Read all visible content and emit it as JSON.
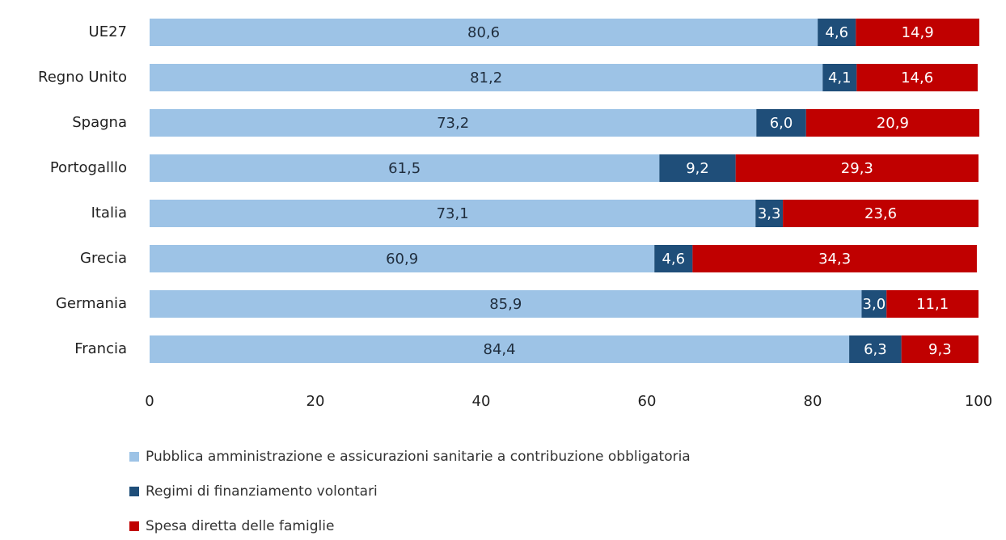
{
  "chart_data": {
    "type": "stacked_bar_horizontal",
    "categories": [
      "UE27",
      "Regno Unito",
      "Spagna",
      "Portogalllo",
      "Italia",
      "Grecia",
      "Germania",
      "Francia"
    ],
    "series": [
      {
        "name": "Pubblica amministrazione e assicurazioni sanitarie a contribuzione obbligatoria",
        "color": "#9dc3e6",
        "values": [
          80.6,
          81.2,
          73.2,
          61.5,
          73.1,
          60.9,
          85.9,
          84.4
        ],
        "value_labels": [
          "80,6",
          "81,2",
          "73,2",
          "61,5",
          "73,1",
          "60,9",
          "85,9",
          "84,4"
        ]
      },
      {
        "name": "Regimi di finanziamento volontari",
        "color": "#1f4e79",
        "values": [
          4.6,
          4.1,
          6.0,
          9.2,
          3.3,
          4.6,
          3.0,
          6.3
        ],
        "value_labels": [
          "4,6",
          "4,1",
          "6,0",
          "9,2",
          "3,3",
          "4,6",
          "3,0",
          "6,3"
        ]
      },
      {
        "name": "Spesa diretta delle famiglie",
        "color": "#c00000",
        "values": [
          14.9,
          14.6,
          20.9,
          29.3,
          23.6,
          34.3,
          11.1,
          9.3
        ],
        "value_labels": [
          "14,9",
          "14,6",
          "20,9",
          "29,3",
          "23,6",
          "34,3",
          "11,1",
          "9,3"
        ]
      }
    ],
    "xlim": [
      0,
      100
    ],
    "xticks": [
      0,
      20,
      40,
      60,
      80,
      100
    ],
    "grid": false,
    "legend": "bottom"
  }
}
